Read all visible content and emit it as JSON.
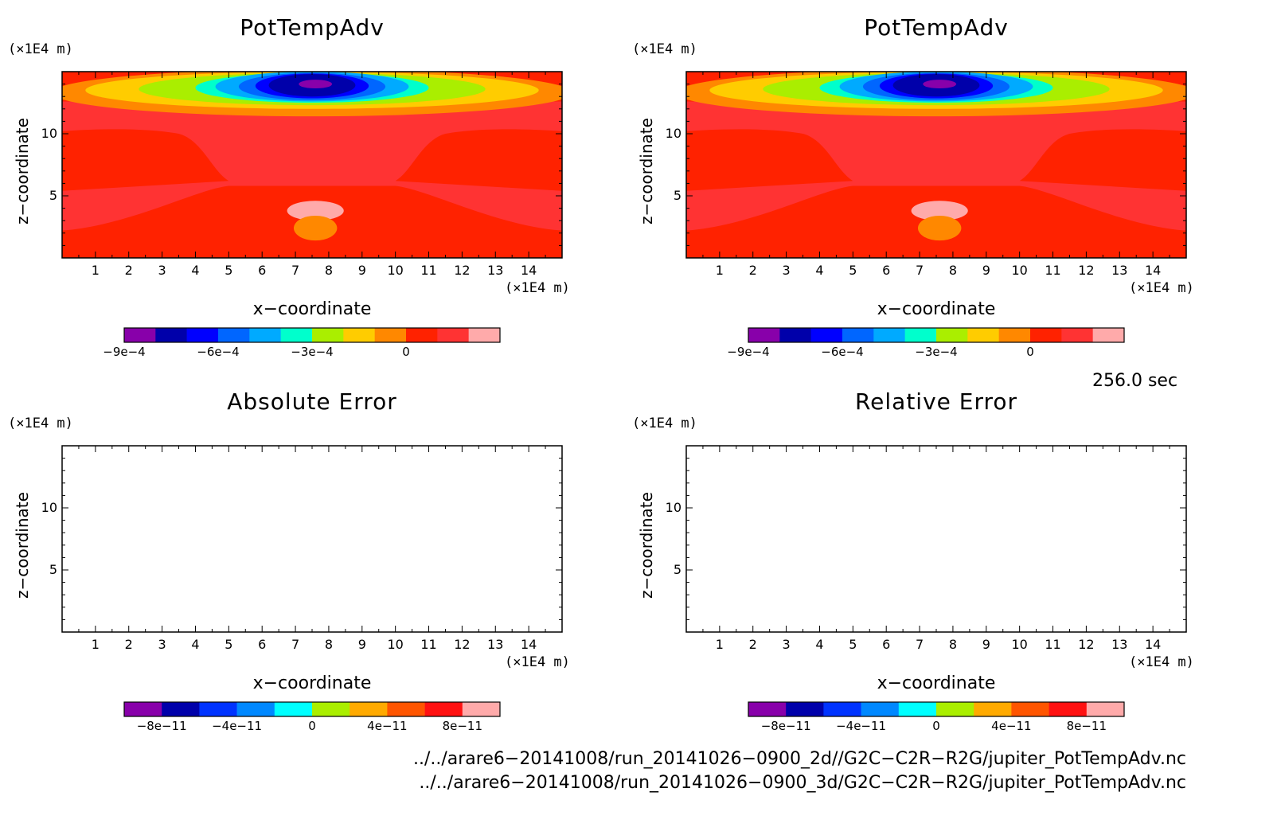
{
  "chart_data": [
    {
      "type": "heatmap",
      "title": "PotTempAdv",
      "xlabel": "x−coordinate",
      "ylabel": "z−coordinate",
      "xunit": "(×1E4 m)",
      "yunit": "(×1E4 m)",
      "xticks": [
        "1",
        "2",
        "3",
        "4",
        "5",
        "6",
        "7",
        "8",
        "9",
        "10",
        "11",
        "12",
        "13",
        "14"
      ],
      "yticks": [
        "5",
        "10"
      ],
      "xlim": [
        0,
        15
      ],
      "ylim": [
        0,
        15
      ],
      "colorbar": {
        "colors": [
          "#8800aa",
          "#0000aa",
          "#0000ff",
          "#0066ff",
          "#00aaff",
          "#00ffcc",
          "#aaee00",
          "#ffcc00",
          "#ff8800",
          "#ff2200",
          "#ff3333",
          "#ffaaaa"
        ],
        "tick_labels": [
          "−9e−4",
          "−6e−4",
          "−3e−4",
          "0"
        ],
        "tick_values": [
          -0.0009,
          -0.0006,
          -0.0003,
          0
        ]
      }
    },
    {
      "type": "heatmap",
      "title": "PotTempAdv",
      "xlabel": "x−coordinate",
      "ylabel": "z−coordinate",
      "xunit": "(×1E4 m)",
      "yunit": "(×1E4 m)",
      "xticks": [
        "1",
        "2",
        "3",
        "4",
        "5",
        "6",
        "7",
        "8",
        "9",
        "10",
        "11",
        "12",
        "13",
        "14"
      ],
      "yticks": [
        "5",
        "10"
      ],
      "xlim": [
        0,
        15
      ],
      "ylim": [
        0,
        15
      ],
      "colorbar": {
        "colors": [
          "#8800aa",
          "#0000aa",
          "#0000ff",
          "#0066ff",
          "#00aaff",
          "#00ffcc",
          "#aaee00",
          "#ffcc00",
          "#ff8800",
          "#ff2200",
          "#ff3333",
          "#ffaaaa"
        ],
        "tick_labels": [
          "−9e−4",
          "−6e−4",
          "−3e−4",
          "0"
        ],
        "tick_values": [
          -0.0009,
          -0.0006,
          -0.0003,
          0
        ]
      }
    },
    {
      "type": "heatmap",
      "title": "Absolute Error",
      "xlabel": "x−coordinate",
      "ylabel": "z−coordinate",
      "xunit": "(×1E4 m)",
      "yunit": "(×1E4 m)",
      "xticks": [
        "1",
        "2",
        "3",
        "4",
        "5",
        "6",
        "7",
        "8",
        "9",
        "10",
        "11",
        "12",
        "13",
        "14"
      ],
      "yticks": [
        "5",
        "10"
      ],
      "xlim": [
        0,
        15
      ],
      "ylim": [
        0,
        15
      ],
      "colorbar": {
        "colors": [
          "#8800aa",
          "#0000aa",
          "#0033ff",
          "#0088ff",
          "#00ffff",
          "#aaee00",
          "#ffaa00",
          "#ff5500",
          "#ff1111",
          "#ffaaaa"
        ],
        "tick_labels": [
          "−8e−11",
          "−4e−11",
          "0",
          "4e−11",
          "8e−11"
        ],
        "tick_values": [
          -8e-11,
          -4e-11,
          0,
          4e-11,
          8e-11
        ]
      }
    },
    {
      "type": "heatmap",
      "title": "Relative Error",
      "xlabel": "x−coordinate",
      "ylabel": "z−coordinate",
      "xunit": "(×1E4 m)",
      "yunit": "(×1E4 m)",
      "xticks": [
        "1",
        "2",
        "3",
        "4",
        "5",
        "6",
        "7",
        "8",
        "9",
        "10",
        "11",
        "12",
        "13",
        "14"
      ],
      "yticks": [
        "5",
        "10"
      ],
      "xlim": [
        0,
        15
      ],
      "ylim": [
        0,
        15
      ],
      "colorbar": {
        "colors": [
          "#8800aa",
          "#0000aa",
          "#0033ff",
          "#0088ff",
          "#00ffff",
          "#aaee00",
          "#ffaa00",
          "#ff5500",
          "#ff1111",
          "#ffaaaa"
        ],
        "tick_labels": [
          "−8e−11",
          "−4e−11",
          "0",
          "4e−11",
          "8e−11"
        ],
        "tick_values": [
          -8e-11,
          -4e-11,
          0,
          4e-11,
          8e-11
        ]
      }
    }
  ],
  "time_label": "256.0 sec",
  "files": [
    "../../arare6−20141008/run_20141026−0900_2d//G2C−C2R−R2G/jupiter_PotTempAdv.nc",
    "../../arare6−20141008/run_20141026−0900_3d/G2C−C2R−R2G/jupiter_PotTempAdv.nc"
  ]
}
